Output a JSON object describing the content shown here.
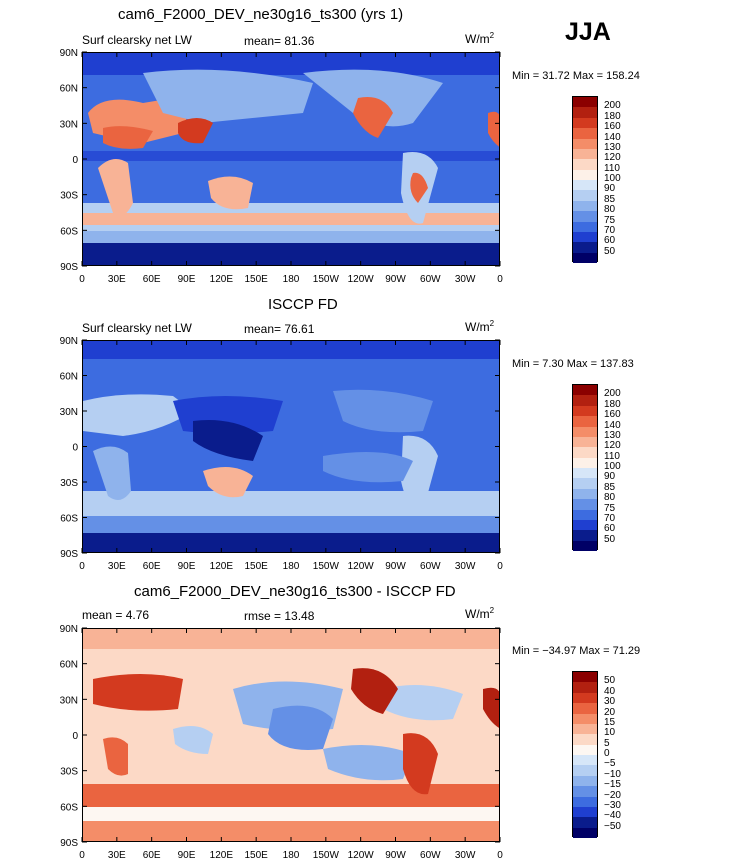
{
  "season": "JJA",
  "units": "W/m",
  "units_sup": "2",
  "panels": [
    {
      "title": "cam6_F2000_DEV_ne30g16_ts300 (yrs 1)",
      "left_label": "Surf clearsky net LW",
      "center_label": "mean=   81.36",
      "stats": "Min =   31.72 Max = 158.24",
      "levels": [
        "200",
        "180",
        "160",
        "140",
        "130",
        "120",
        "110",
        "100",
        "90",
        "85",
        "80",
        "75",
        "70",
        "60",
        "50"
      ]
    },
    {
      "title": "ISCCP FD",
      "left_label": "Surf clearsky net LW",
      "center_label": "mean=   76.61",
      "stats": "Min =    7.30 Max = 137.83",
      "levels": [
        "200",
        "180",
        "160",
        "140",
        "130",
        "120",
        "110",
        "100",
        "90",
        "85",
        "80",
        "75",
        "70",
        "60",
        "50"
      ]
    },
    {
      "title": "cam6_F2000_DEV_ne30g16_ts300 - ISCCP FD",
      "left_label": "mean =    4.76",
      "center_label": "rmse =   13.48",
      "stats": "Min = −34.97 Max =  71.29",
      "levels": [
        "50",
        "40",
        "30",
        "20",
        "15",
        "10",
        "5",
        "0",
        "−5",
        "−10",
        "−15",
        "−20",
        "−30",
        "−40",
        "−50"
      ]
    }
  ],
  "lat_labels": [
    "90N",
    "60N",
    "30N",
    "0",
    "30S",
    "60S",
    "90S"
  ],
  "lon_labels": [
    "0",
    "30E",
    "60E",
    "90E",
    "120E",
    "150E",
    "180",
    "150W",
    "120W",
    "90W",
    "60W",
    "30W",
    "0"
  ],
  "colors": {
    "abs": [
      "#8b0000",
      "#b22010",
      "#d33a1f",
      "#ea6440",
      "#f48d68",
      "#f8b396",
      "#fcd9c6",
      "#fdf1e8",
      "#d6e6f8",
      "#b5cff2",
      "#8fb3ec",
      "#6490e6",
      "#3d6ce0",
      "#1f3fd0",
      "#0a1c8c"
    ],
    "diff": [
      "#8b0000",
      "#b22010",
      "#d33a1f",
      "#ea6440",
      "#f48d68",
      "#f8b396",
      "#fcd9c6",
      "#fdf7f2",
      "#d6e6f8",
      "#b5cff2",
      "#8fb3ec",
      "#6490e6",
      "#3d6ce0",
      "#1f3fd0",
      "#0a1c8c"
    ]
  },
  "chart_data": [
    {
      "type": "heatmap",
      "title": "cam6_F2000_DEV_ne30g16_ts300 (yrs 1)",
      "variable": "Surf clearsky net LW",
      "units": "W/m2",
      "mean": 81.36,
      "min": 31.72,
      "max": 158.24,
      "contour_levels": [
        50,
        60,
        70,
        75,
        80,
        85,
        90,
        100,
        110,
        120,
        130,
        140,
        160,
        180,
        200
      ],
      "xlim": [
        0,
        360
      ],
      "ylim": [
        -90,
        90
      ]
    },
    {
      "type": "heatmap",
      "title": "ISCCP FD",
      "variable": "Surf clearsky net LW",
      "units": "W/m2",
      "mean": 76.61,
      "min": 7.3,
      "max": 137.83,
      "contour_levels": [
        50,
        60,
        70,
        75,
        80,
        85,
        90,
        100,
        110,
        120,
        130,
        140,
        160,
        180,
        200
      ],
      "xlim": [
        0,
        360
      ],
      "ylim": [
        -90,
        90
      ]
    },
    {
      "type": "heatmap",
      "title": "cam6_F2000_DEV_ne30g16_ts300 - ISCCP FD",
      "units": "W/m2",
      "mean": 4.76,
      "rmse": 13.48,
      "min": -34.97,
      "max": 71.29,
      "contour_levels": [
        -50,
        -40,
        -30,
        -20,
        -15,
        -10,
        -5,
        0,
        5,
        10,
        15,
        20,
        30,
        40,
        50
      ],
      "xlim": [
        0,
        360
      ],
      "ylim": [
        -90,
        90
      ]
    }
  ]
}
